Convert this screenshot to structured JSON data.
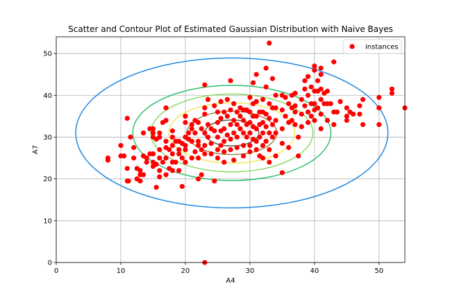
{
  "chart_data": {
    "type": "scatter",
    "title": "Scatter and Contour Plot of Estimated Gaussian Distribution with Naive Bayes",
    "xlabel": "A4",
    "ylabel": "A7",
    "xlim": [
      0,
      54
    ],
    "ylim": [
      0,
      54
    ],
    "xticks": [
      0,
      10,
      20,
      30,
      40,
      50
    ],
    "yticks": [
      0,
      10,
      20,
      30,
      40,
      50
    ],
    "grid": true,
    "legend": {
      "placement": "top-right",
      "entries": [
        "instances"
      ]
    },
    "series": [
      {
        "name": "instances",
        "color": "#ff0000",
        "marker": "circle",
        "points": [
          [
            8,
            25
          ],
          [
            8,
            24.5
          ],
          [
            10,
            25.5
          ],
          [
            10,
            28
          ],
          [
            10.5,
            25.5
          ],
          [
            11,
            34.5
          ],
          [
            11,
            22.5
          ],
          [
            11,
            19.5
          ],
          [
            11.2,
            19.5
          ],
          [
            11.5,
            30
          ],
          [
            12,
            27.5
          ],
          [
            12,
            25
          ],
          [
            12.5,
            22.5
          ],
          [
            12.5,
            20
          ],
          [
            13,
            22
          ],
          [
            13,
            21
          ],
          [
            13,
            19.5
          ],
          [
            13.5,
            21
          ],
          [
            13.5,
            25.5
          ],
          [
            13.5,
            31
          ],
          [
            14,
            25
          ],
          [
            14,
            24
          ],
          [
            14.5,
            26
          ],
          [
            14.5,
            32
          ],
          [
            15,
            32
          ],
          [
            15,
            31
          ],
          [
            15,
            30
          ],
          [
            15,
            26
          ],
          [
            15,
            24
          ],
          [
            15,
            23
          ],
          [
            15.5,
            23.5
          ],
          [
            15.5,
            29.5
          ],
          [
            15.5,
            18
          ],
          [
            16,
            31
          ],
          [
            16,
            30
          ],
          [
            16,
            27
          ],
          [
            16,
            25
          ],
          [
            16,
            22
          ],
          [
            16,
            20.5
          ],
          [
            16.5,
            33.5
          ],
          [
            16.5,
            24
          ],
          [
            17,
            37
          ],
          [
            17,
            34
          ],
          [
            17,
            29
          ],
          [
            17,
            27.5
          ],
          [
            17,
            25
          ],
          [
            17,
            21
          ],
          [
            17.5,
            27
          ],
          [
            17.5,
            22.5
          ],
          [
            18,
            31.5
          ],
          [
            18,
            30
          ],
          [
            18,
            28
          ],
          [
            18,
            26
          ],
          [
            18,
            24
          ],
          [
            18,
            22
          ],
          [
            18.5,
            29
          ],
          [
            18.5,
            24
          ],
          [
            19,
            29
          ],
          [
            19,
            27
          ],
          [
            19,
            26
          ],
          [
            19,
            22
          ],
          [
            19.5,
            28.5
          ],
          [
            19.5,
            25
          ],
          [
            19.5,
            18.2
          ],
          [
            20,
            35
          ],
          [
            20,
            33.5
          ],
          [
            20,
            30
          ],
          [
            20,
            28
          ],
          [
            20,
            27
          ],
          [
            20,
            24
          ],
          [
            20.5,
            31
          ],
          [
            20.5,
            29.5
          ],
          [
            21,
            33
          ],
          [
            21,
            32
          ],
          [
            21,
            29
          ],
          [
            21,
            25
          ],
          [
            21.5,
            34
          ],
          [
            21.5,
            31
          ],
          [
            21.5,
            26.5
          ],
          [
            22,
            33.5
          ],
          [
            22,
            29
          ],
          [
            22,
            28
          ],
          [
            22,
            25
          ],
          [
            22,
            20
          ],
          [
            22.5,
            32
          ],
          [
            22.5,
            27
          ],
          [
            22.5,
            21
          ],
          [
            23,
            42.5
          ],
          [
            23,
            37
          ],
          [
            23,
            35.5
          ],
          [
            23,
            31
          ],
          [
            23,
            28
          ],
          [
            23,
            26
          ],
          [
            23,
            0
          ],
          [
            23.5,
            39
          ],
          [
            23.5,
            33
          ],
          [
            23.5,
            30
          ],
          [
            24,
            32
          ],
          [
            24,
            28.5
          ],
          [
            24,
            26
          ],
          [
            24.5,
            37.5
          ],
          [
            24.5,
            31.5
          ],
          [
            24.5,
            19.5
          ],
          [
            25,
            36
          ],
          [
            25,
            33.5
          ],
          [
            25,
            30
          ],
          [
            25,
            27
          ],
          [
            25,
            25
          ],
          [
            25.5,
            38.5
          ],
          [
            25.5,
            34.5
          ],
          [
            25.5,
            31.5
          ],
          [
            25.5,
            28
          ],
          [
            26,
            36
          ],
          [
            26,
            32
          ],
          [
            26,
            29
          ],
          [
            26,
            26.5
          ],
          [
            26,
            24
          ],
          [
            26.5,
            39
          ],
          [
            26.5,
            35
          ],
          [
            26.5,
            30.5
          ],
          [
            27,
            43.5
          ],
          [
            27,
            36.5
          ],
          [
            27,
            33
          ],
          [
            27,
            29.5
          ],
          [
            27,
            27
          ],
          [
            27.5,
            38
          ],
          [
            27.5,
            34
          ],
          [
            27.5,
            31
          ],
          [
            27.5,
            24.5
          ],
          [
            28,
            36
          ],
          [
            28,
            33
          ],
          [
            28,
            30
          ],
          [
            28,
            27.5
          ],
          [
            28.5,
            37
          ],
          [
            28.5,
            35
          ],
          [
            28.5,
            32
          ],
          [
            29,
            36.5
          ],
          [
            29,
            34
          ],
          [
            29,
            31
          ],
          [
            29,
            28
          ],
          [
            29,
            25.5
          ],
          [
            29.5,
            36.5
          ],
          [
            29.5,
            33
          ],
          [
            29.5,
            30
          ],
          [
            30,
            39.5
          ],
          [
            30,
            36
          ],
          [
            30,
            33.5
          ],
          [
            30,
            31
          ],
          [
            30,
            28
          ],
          [
            30,
            26.5
          ],
          [
            30.5,
            43
          ],
          [
            30.5,
            38
          ],
          [
            30.5,
            35
          ],
          [
            30.5,
            32.5
          ],
          [
            30.5,
            29.5
          ],
          [
            31,
            45
          ],
          [
            31,
            38.5
          ],
          [
            31,
            35
          ],
          [
            31,
            32
          ],
          [
            31,
            29
          ],
          [
            31,
            27
          ],
          [
            31.5,
            36
          ],
          [
            31.5,
            33
          ],
          [
            31.5,
            30
          ],
          [
            31.5,
            25.5
          ],
          [
            32,
            39
          ],
          [
            32,
            36
          ],
          [
            32,
            33.5
          ],
          [
            32,
            31
          ],
          [
            32,
            28
          ],
          [
            32,
            25
          ],
          [
            32.5,
            46.5
          ],
          [
            32.5,
            42
          ],
          [
            32.5,
            35.5
          ],
          [
            32.5,
            32.5
          ],
          [
            32.5,
            29
          ],
          [
            33,
            52.5
          ],
          [
            33,
            38
          ],
          [
            33,
            34.5
          ],
          [
            33,
            31
          ],
          [
            33,
            27
          ],
          [
            33,
            24
          ],
          [
            33.5,
            44
          ],
          [
            33.5,
            37
          ],
          [
            33.5,
            33
          ],
          [
            33.5,
            30
          ],
          [
            34,
            40
          ],
          [
            34,
            37
          ],
          [
            34,
            34
          ],
          [
            34,
            31
          ],
          [
            34,
            25.5
          ],
          [
            35,
            40
          ],
          [
            35,
            36.5
          ],
          [
            35,
            32
          ],
          [
            35,
            28.5
          ],
          [
            35,
            21.5
          ],
          [
            35.5,
            39.5
          ],
          [
            35.5,
            35
          ],
          [
            36,
            38
          ],
          [
            36,
            33.5
          ],
          [
            36,
            27.5
          ],
          [
            36.5,
            40
          ],
          [
            36.5,
            37
          ],
          [
            36.5,
            34
          ],
          [
            37,
            40.5
          ],
          [
            37,
            37.5
          ],
          [
            37,
            36
          ],
          [
            37,
            33
          ],
          [
            37.5,
            25.5
          ],
          [
            37.5,
            30
          ],
          [
            38,
            39
          ],
          [
            38,
            35.5
          ],
          [
            38,
            32.5
          ],
          [
            38.5,
            43.5
          ],
          [
            38.5,
            41.5
          ],
          [
            38.5,
            37.5
          ],
          [
            39,
            44.5
          ],
          [
            39,
            40
          ],
          [
            39,
            36
          ],
          [
            39,
            33.5
          ],
          [
            39.5,
            42
          ],
          [
            39.5,
            38
          ],
          [
            39.5,
            35
          ],
          [
            40,
            47
          ],
          [
            40,
            46
          ],
          [
            40,
            41
          ],
          [
            40,
            38
          ],
          [
            40,
            36.5
          ],
          [
            40,
            34
          ],
          [
            40.5,
            43.5
          ],
          [
            40.5,
            41
          ],
          [
            40.5,
            37
          ],
          [
            41,
            46.5
          ],
          [
            41,
            45
          ],
          [
            41,
            41.5
          ],
          [
            41,
            39
          ],
          [
            41,
            35.5
          ],
          [
            41,
            32
          ],
          [
            41.5,
            40.5
          ],
          [
            41.5,
            38
          ],
          [
            42,
            41
          ],
          [
            42,
            38
          ],
          [
            42,
            34
          ],
          [
            42.5,
            38
          ],
          [
            43,
            48
          ],
          [
            43,
            36
          ],
          [
            43,
            33
          ],
          [
            43.5,
            36
          ],
          [
            44,
            38.5
          ],
          [
            45,
            37
          ],
          [
            45,
            35
          ],
          [
            45,
            34
          ],
          [
            45.5,
            36
          ],
          [
            46,
            35.5
          ],
          [
            47,
            37.5
          ],
          [
            47,
            35.5
          ],
          [
            47.5,
            39
          ],
          [
            47.5,
            33
          ],
          [
            50,
            39.5
          ],
          [
            50,
            37
          ],
          [
            50,
            33
          ],
          [
            52,
            41.5
          ],
          [
            52,
            40.5
          ],
          [
            54,
            37
          ]
        ]
      }
    ],
    "contours": [
      {
        "color": "#1f87e0",
        "level_index": 0
      },
      {
        "color": "#2dbf6e",
        "level_index": 1
      },
      {
        "color": "#89d964",
        "level_index": 2
      },
      {
        "color": "#f2e85c",
        "level_index": 3
      },
      {
        "color": "#9b8a55",
        "level_index": 4
      },
      {
        "color": "#6b5a48",
        "level_index": 5
      }
    ],
    "gaussian": {
      "mean_x": 27.2,
      "mean_y": 31.0,
      "std_x": 9.3,
      "std_y": 6.9
    }
  }
}
